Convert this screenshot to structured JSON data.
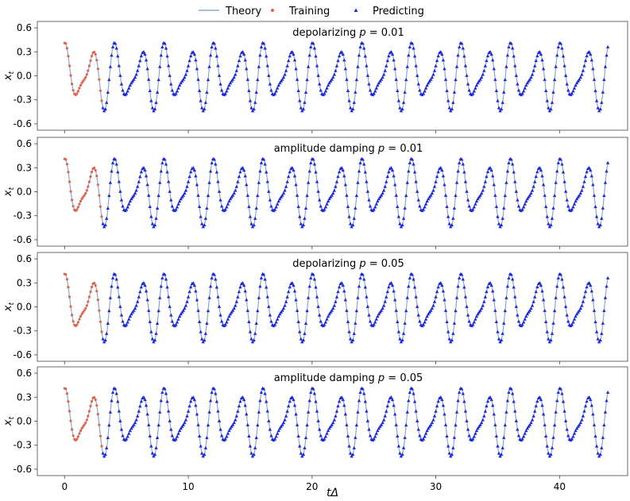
{
  "chart_data": {
    "type": "line",
    "legend": {
      "placement": "top-center",
      "entries": [
        {
          "label": "Theory",
          "color": "#8ea7c9",
          "marker": "line"
        },
        {
          "label": "Training",
          "color": "#e0654f",
          "marker": "dot"
        },
        {
          "label": "Predicting",
          "color": "#1c2bd8",
          "marker": "triangle"
        }
      ]
    },
    "xlabel": "tΔ",
    "xlim": [
      -2.2,
      45.5
    ],
    "xticks": [
      0,
      10,
      20,
      30,
      40
    ],
    "signal": {
      "description_formula": "0.30*sin(2πt/2) + 0.15*sin(2πt/1.33)",
      "amp1": 0.3,
      "period1": 2.0,
      "amp2": 0.15,
      "period2": 1.3333,
      "phase": 1.1,
      "t_start": 0.0,
      "t_end": 43.9,
      "dt": 0.1,
      "train_end": 3.0
    },
    "panels": [
      {
        "title_prefix": "depolarizing",
        "p_value": "0.01",
        "ylabel": "x_t",
        "ylim": [
          -0.68,
          0.68
        ],
        "yticks": [
          "0.6",
          "0.3",
          "0.0",
          "-0.3",
          "-0.6"
        ]
      },
      {
        "title_prefix": "amplitude damping",
        "p_value": "0.01",
        "ylabel": "x_t",
        "ylim": [
          -0.68,
          0.68
        ],
        "yticks": [
          "0.6",
          "0.3",
          "0.0",
          "-0.3",
          "-0.6"
        ]
      },
      {
        "title_prefix": "depolarizing",
        "p_value": "0.05",
        "ylabel": "x_t",
        "ylim": [
          -0.68,
          0.68
        ],
        "yticks": [
          "0.6",
          "0.3",
          "0.0",
          "-0.3",
          "-0.6"
        ]
      },
      {
        "title_prefix": "amplitude damping",
        "p_value": "0.05",
        "ylabel": "x_t",
        "ylim": [
          -0.68,
          0.68
        ],
        "yticks": [
          "0.6",
          "0.3",
          "0.0",
          "-0.3",
          "-0.6"
        ]
      }
    ]
  }
}
